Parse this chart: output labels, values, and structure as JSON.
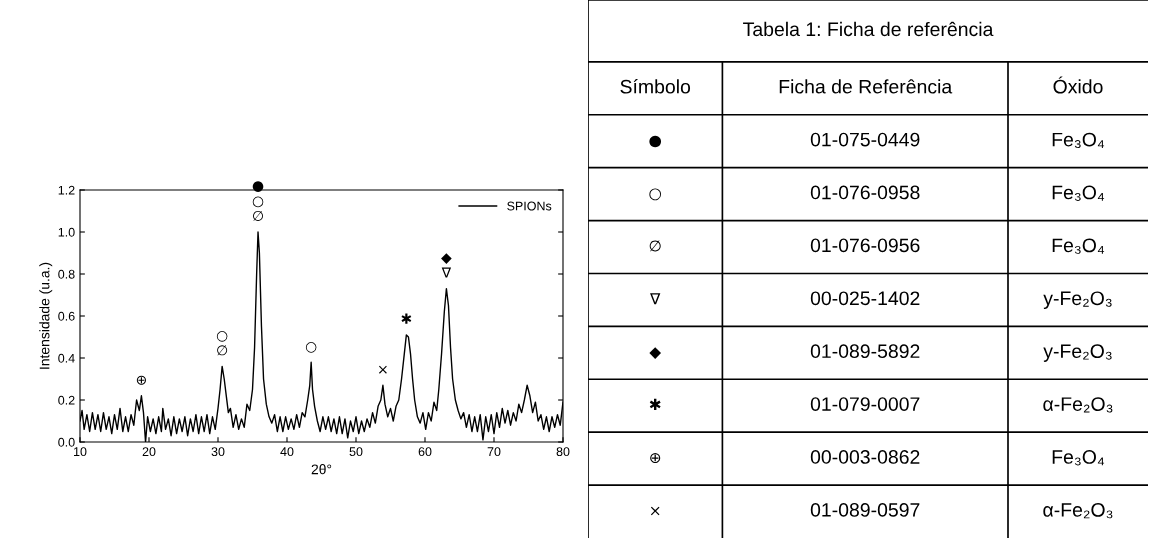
{
  "chart_data": [
    {
      "type": "line",
      "xlabel": "2θ°",
      "ylabel": "Intensidade (u.a.)",
      "xlim": [
        10,
        80
      ],
      "xticks": [
        10,
        20,
        30,
        40,
        50,
        60,
        70,
        80
      ],
      "ylim": [
        0,
        1.2
      ],
      "yticks": [
        {
          "value": 0,
          "label": "0.0"
        },
        {
          "value": 0.2,
          "label": "0.2"
        },
        {
          "value": 0.4,
          "label": "0.4"
        },
        {
          "value": 0.6,
          "label": "0.6"
        },
        {
          "value": 0.8,
          "label": "0.8"
        },
        {
          "value": 1.0,
          "label": "1.0"
        },
        {
          "value": 1.2,
          "label": "1.2"
        }
      ],
      "legend": "top right",
      "grid": false,
      "series": [
        {
          "name": "SPIONs",
          "color": "#000000",
          "x": [
            10,
            10.3,
            10.6,
            11,
            11.4,
            11.8,
            12.2,
            12.6,
            13,
            13.4,
            13.8,
            14.2,
            14.6,
            15,
            15.4,
            15.8,
            16.2,
            16.6,
            17,
            17.4,
            17.8,
            18.2,
            18.6,
            18.9,
            19.2,
            19.5,
            19.8,
            20.2,
            20.6,
            21,
            21.4,
            21.8,
            22,
            22.4,
            22.8,
            23.2,
            23.6,
            24,
            24.4,
            24.8,
            25.2,
            25.6,
            26,
            26.4,
            26.8,
            27.2,
            27.6,
            28,
            28.4,
            28.8,
            29.2,
            29.6,
            30,
            30.3,
            30.6,
            30.9,
            31.2,
            31.5,
            31.8,
            32.2,
            32.6,
            33,
            33.4,
            33.8,
            34.2,
            34.6,
            35,
            35.3,
            35.6,
            35.8,
            36,
            36.3,
            36.6,
            37,
            37.4,
            37.8,
            38.2,
            38.6,
            39,
            39.4,
            39.8,
            40.2,
            40.6,
            41,
            41.4,
            41.8,
            42.2,
            42.6,
            43,
            43.3,
            43.5,
            43.7,
            44,
            44.4,
            44.8,
            45.2,
            45.6,
            46,
            46.4,
            46.8,
            47.2,
            47.6,
            48,
            48.4,
            48.8,
            49.2,
            49.6,
            50,
            50.4,
            50.8,
            51.2,
            51.6,
            52,
            52.4,
            52.8,
            53.2,
            53.6,
            53.9,
            54.2,
            54.6,
            55,
            55.4,
            55.8,
            56.2,
            56.6,
            57,
            57.3,
            57.6,
            57.9,
            58.2,
            58.5,
            58.9,
            59.3,
            59.7,
            60.1,
            60.5,
            60.9,
            61.3,
            61.7,
            62,
            62.4,
            62.8,
            63.1,
            63.4,
            63.7,
            64,
            64.4,
            64.8,
            65.2,
            65.6,
            66,
            66.4,
            66.8,
            67.2,
            67.6,
            68,
            68.4,
            68.8,
            69.2,
            69.6,
            70,
            70.4,
            70.8,
            71.2,
            71.6,
            72,
            72.4,
            72.8,
            73.2,
            73.6,
            74,
            74.4,
            74.8,
            75.2,
            75.6,
            76,
            76.4,
            76.8,
            77.2,
            77.6,
            78,
            78.4,
            78.8,
            79.2,
            79.6,
            80
          ],
          "values": [
            0.1,
            0.15,
            0.06,
            0.13,
            0.05,
            0.14,
            0.06,
            0.13,
            0.05,
            0.14,
            0.06,
            0.12,
            0.04,
            0.13,
            0.06,
            0.16,
            0.05,
            0.12,
            0.05,
            0.13,
            0.08,
            0.2,
            0.15,
            0.22,
            0.14,
            0.0,
            0.12,
            0.05,
            0.11,
            0.04,
            0.12,
            0.05,
            0.16,
            0.06,
            0.11,
            0.03,
            0.12,
            0.04,
            0.11,
            0.05,
            0.12,
            0.03,
            0.11,
            0.05,
            0.13,
            0.04,
            0.12,
            0.05,
            0.13,
            0.04,
            0.12,
            0.06,
            0.16,
            0.25,
            0.36,
            0.3,
            0.22,
            0.14,
            0.16,
            0.07,
            0.13,
            0.06,
            0.11,
            0.07,
            0.18,
            0.15,
            0.25,
            0.45,
            0.8,
            1.0,
            0.9,
            0.55,
            0.3,
            0.18,
            0.12,
            0.09,
            0.13,
            0.05,
            0.12,
            0.05,
            0.12,
            0.06,
            0.11,
            0.06,
            0.13,
            0.07,
            0.14,
            0.12,
            0.2,
            0.27,
            0.38,
            0.25,
            0.17,
            0.1,
            0.05,
            0.12,
            0.06,
            0.12,
            0.05,
            0.11,
            0.04,
            0.12,
            0.04,
            0.11,
            0.02,
            0.1,
            0.05,
            0.12,
            0.04,
            0.1,
            0.05,
            0.11,
            0.07,
            0.14,
            0.09,
            0.17,
            0.2,
            0.27,
            0.18,
            0.12,
            0.16,
            0.1,
            0.17,
            0.2,
            0.3,
            0.42,
            0.51,
            0.5,
            0.42,
            0.3,
            0.2,
            0.12,
            0.09,
            0.14,
            0.06,
            0.14,
            0.1,
            0.19,
            0.15,
            0.25,
            0.42,
            0.62,
            0.73,
            0.65,
            0.45,
            0.3,
            0.2,
            0.15,
            0.11,
            0.14,
            0.07,
            0.13,
            0.05,
            0.12,
            0.05,
            0.13,
            0.01,
            0.12,
            0.05,
            0.13,
            0.04,
            0.14,
            0.07,
            0.16,
            0.09,
            0.15,
            0.08,
            0.14,
            0.1,
            0.18,
            0.14,
            0.2,
            0.27,
            0.22,
            0.14,
            0.19,
            0.1,
            0.13,
            0.06,
            0.12,
            0.05,
            0.12,
            0.07,
            0.13,
            0.08,
            0.19
          ]
        }
      ],
      "annotations": [
        {
          "text": "⊕",
          "x": 18.9,
          "y": 0.22
        },
        {
          "text": "○",
          "x": 30.6,
          "y": 0.36
        },
        {
          "text": "∅",
          "x": 30.6,
          "y": 0.36
        },
        {
          "text": "●",
          "x": 35.8,
          "y": 1.0
        },
        {
          "text": "○",
          "x": 35.8,
          "y": 1.0
        },
        {
          "text": "∅",
          "x": 35.8,
          "y": 1.0
        },
        {
          "text": "○",
          "x": 43.5,
          "y": 0.38
        },
        {
          "text": "×",
          "x": 53.9,
          "y": 0.27
        },
        {
          "text": "✱",
          "x": 57.3,
          "y": 0.51
        },
        {
          "text": "◆",
          "x": 63.1,
          "y": 0.73
        },
        {
          "text": "∇",
          "x": 63.1,
          "y": 0.73
        }
      ]
    },
    {
      "type": "other",
      "title": "Tabela 1: Ficha de referência",
      "annotations": [
        "Símbolo",
        "Ficha de Referência",
        "Óxido",
        "●",
        "01-075-0449",
        "Fe₃O₄",
        "○",
        "01-076-0958",
        "Fe₃O₄",
        "∅",
        "01-076-0956",
        "Fe₃O₄",
        "∇",
        "00-025-1402",
        "y-Fe₂O₃",
        "◆",
        "01-089-5892",
        "y-Fe₂O₃",
        "✱",
        "01-079-0007",
        "α-Fe₂O₃",
        "⊕",
        "00-003-0862",
        "Fe₃O₄",
        "×",
        "01-089-0597",
        "α-Fe₂O₃"
      ]
    }
  ]
}
